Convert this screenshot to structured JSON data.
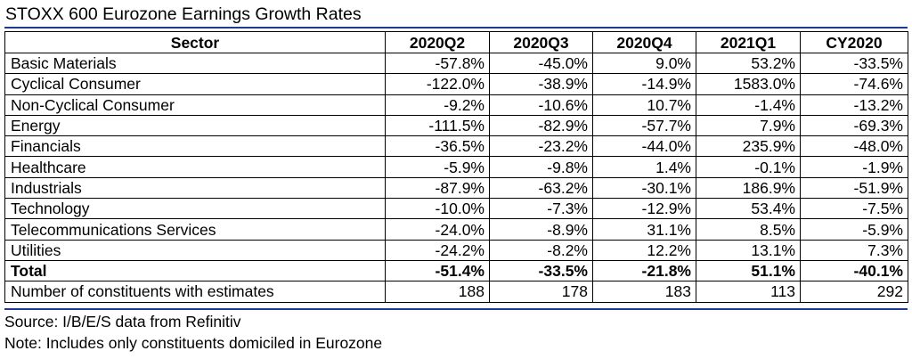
{
  "title": "STOXX 600 Eurozone Earnings Growth Rates",
  "columns": [
    "Sector",
    "2020Q2",
    "2020Q3",
    "2020Q4",
    "2021Q1",
    "CY2020"
  ],
  "rows": [
    {
      "sector": "Basic Materials",
      "values": [
        "-57.8%",
        "-45.0%",
        "9.0%",
        "53.2%",
        "-33.5%"
      ]
    },
    {
      "sector": "Cyclical Consumer",
      "values": [
        "-122.0%",
        "-38.9%",
        "-14.9%",
        "1583.0%",
        "-74.6%"
      ]
    },
    {
      "sector": "Non-Cyclical Consumer",
      "values": [
        "-9.2%",
        "-10.6%",
        "10.7%",
        "-1.4%",
        "-13.2%"
      ]
    },
    {
      "sector": "Energy",
      "values": [
        "-111.5%",
        "-82.9%",
        "-57.7%",
        "7.9%",
        "-69.3%"
      ]
    },
    {
      "sector": "Financials",
      "values": [
        "-36.5%",
        "-23.2%",
        "-44.0%",
        "235.9%",
        "-48.0%"
      ]
    },
    {
      "sector": "Healthcare",
      "values": [
        "-5.9%",
        "-9.8%",
        "1.4%",
        "-0.1%",
        "-1.9%"
      ]
    },
    {
      "sector": "Industrials",
      "values": [
        "-87.9%",
        "-63.2%",
        "-30.1%",
        "186.9%",
        "-51.9%"
      ]
    },
    {
      "sector": "Technology",
      "values": [
        "-10.0%",
        "-7.3%",
        "-12.9%",
        "53.4%",
        "-7.5%"
      ]
    },
    {
      "sector": "Telecommunications Services",
      "values": [
        "-24.0%",
        "-8.9%",
        "31.1%",
        "8.5%",
        "-5.9%"
      ]
    },
    {
      "sector": "Utilities",
      "values": [
        "-24.2%",
        "-8.2%",
        "12.2%",
        "13.1%",
        "7.3%"
      ]
    }
  ],
  "total": {
    "sector": "Total",
    "values": [
      "-51.4%",
      "-33.5%",
      "-21.8%",
      "51.1%",
      "-40.1%"
    ]
  },
  "constituents": {
    "sector": "Number of constituents with estimates",
    "values": [
      "188",
      "178",
      "183",
      "113",
      "292"
    ]
  },
  "source": "Source: I/B/E/S data from Refinitiv",
  "note": "Note: Includes only constituents domiciled in Eurozone",
  "colors": {
    "rule": "#1f3a93",
    "text": "#000000",
    "background": "#ffffff"
  }
}
